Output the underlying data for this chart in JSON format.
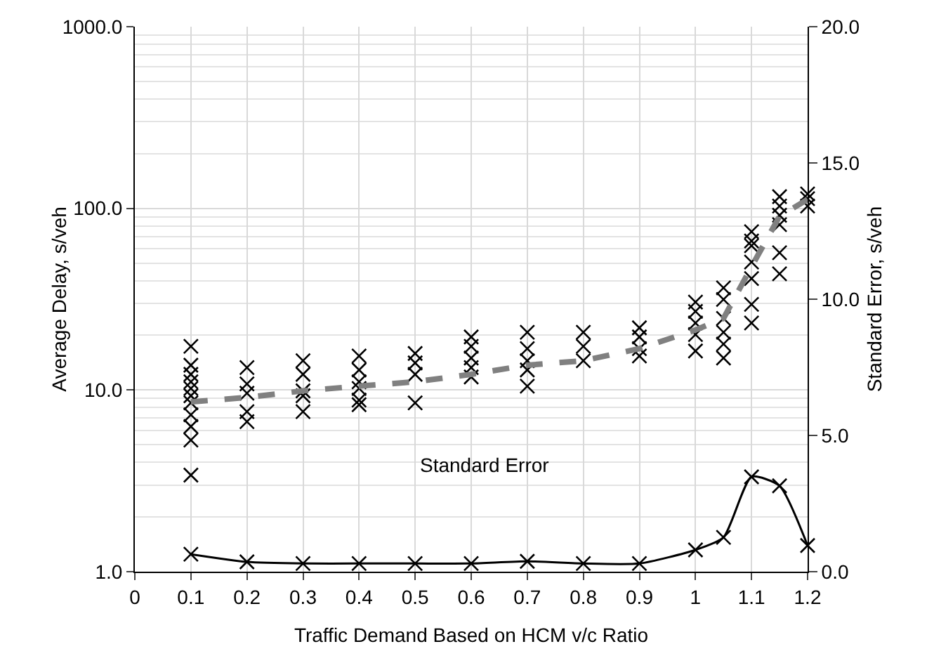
{
  "chart_data": {
    "type": "scatter",
    "xlabel": "Traffic Demand Based on HCM v/c Ratio",
    "ylabel": "Average Delay, s/veh",
    "y2label": "Standard Error, s/veh",
    "xlim": [
      0,
      1.2
    ],
    "xticks": [
      0,
      0.1,
      0.2,
      0.3,
      0.4,
      0.5,
      0.6,
      0.7,
      0.8,
      0.9,
      1,
      1.1,
      1.2
    ],
    "ylim": [
      1,
      1000
    ],
    "yticks": [
      {
        "value": 1,
        "label": "1.0"
      },
      {
        "value": 10,
        "label": "10.0"
      },
      {
        "value": 100,
        "label": "100.0"
      },
      {
        "value": 1000,
        "label": "1000.0"
      }
    ],
    "y2lim": [
      0,
      20
    ],
    "y2ticks": [
      {
        "value": 0,
        "label": "0.0"
      },
      {
        "value": 5,
        "label": "5.0"
      },
      {
        "value": 10,
        "label": "10.0"
      },
      {
        "value": 15,
        "label": "15.0"
      },
      {
        "value": 20,
        "label": "20.0"
      }
    ],
    "log": "y",
    "grid": true,
    "annotations": [
      "Standard Error"
    ],
    "series": [
      {
        "type": "scatter",
        "color": "#000000",
        "marker": "cross",
        "x": [
          0.1,
          0.1,
          0.1,
          0.1,
          0.1,
          0.1,
          0.1,
          0.1,
          0.1,
          0.1,
          0.1,
          0.2,
          0.2,
          0.2,
          0.2,
          0.2,
          0.3,
          0.3,
          0.3,
          0.3,
          0.3,
          0.4,
          0.4,
          0.4,
          0.4,
          0.4,
          0.4,
          0.5,
          0.5,
          0.5,
          0.5,
          0.6,
          0.6,
          0.6,
          0.6,
          0.6,
          0.7,
          0.7,
          0.7,
          0.7,
          0.7,
          0.8,
          0.8,
          0.8,
          0.9,
          0.9,
          0.9,
          0.9,
          1,
          1,
          1,
          1,
          1,
          1.05,
          1.05,
          1.05,
          1.05,
          1.05,
          1.05,
          1.1,
          1.1,
          1.1,
          1.1,
          1.1,
          1.1,
          1.1,
          1.15,
          1.15,
          1.15,
          1.15,
          1.15,
          1.15,
          1.2,
          1.2,
          1.2
        ],
        "values": [
          17.4,
          13.7,
          12.2,
          11.1,
          10.2,
          9.3,
          8.5,
          7.3,
          6.3,
          5.3,
          3.4,
          13.3,
          10.8,
          9.6,
          7.6,
          6.7,
          14.5,
          12.2,
          9.9,
          9.3,
          7.6,
          15.4,
          12.9,
          11.1,
          10.2,
          8.8,
          8.3,
          15.9,
          14.1,
          12.2,
          8.5,
          19.6,
          17.4,
          15,
          13.3,
          11.8,
          20.8,
          16.9,
          14.5,
          12.9,
          10.5,
          20.8,
          17.4,
          14.5,
          22,
          19.6,
          16.9,
          15.4,
          30.5,
          27.1,
          23.4,
          20.2,
          16.4,
          36.5,
          31.5,
          24.8,
          20.8,
          17.9,
          15,
          74.4,
          66.1,
          62.3,
          50.6,
          41.1,
          29.6,
          23.4,
          116,
          103,
          91.6,
          81.3,
          57,
          43.6,
          120,
          113,
          103
        ]
      },
      {
        "type": "line",
        "color": "#808080",
        "line_style": "dashed",
        "marker": "none",
        "x": [
          0.1,
          0.2,
          0.3,
          0.4,
          0.5,
          0.6,
          0.7,
          0.8,
          0.9,
          1,
          1.05,
          1.1,
          1.15,
          1.2
        ],
        "values": [
          8.6,
          9.1,
          9.9,
          10.5,
          11.1,
          12.2,
          13.7,
          14.5,
          16.9,
          21.4,
          24.8,
          47.7,
          90.5,
          112
        ]
      },
      {
        "type": "line",
        "axis": "y2",
        "color": "#000000",
        "line_style": "solid",
        "marker": "cross",
        "x": [
          0.1,
          0.2,
          0.3,
          0.4,
          0.5,
          0.6,
          0.7,
          0.8,
          0.9,
          1,
          1.05,
          1.1,
          1.15,
          1.2
        ],
        "values": [
          0.64,
          0.36,
          0.3,
          0.3,
          0.3,
          0.3,
          0.38,
          0.3,
          0.3,
          0.8,
          1.26,
          3.48,
          3.15,
          0.96
        ]
      }
    ]
  }
}
